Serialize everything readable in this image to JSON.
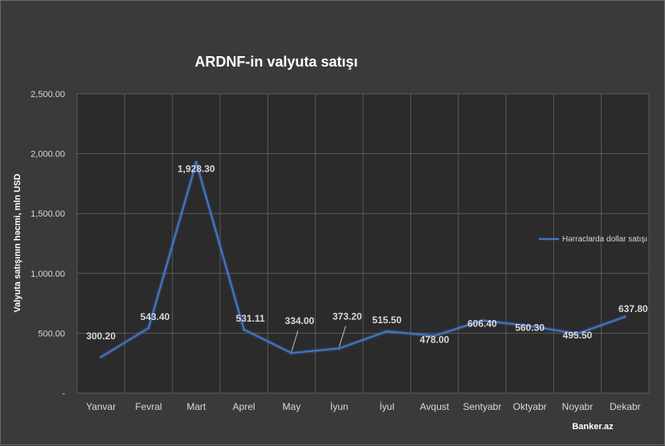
{
  "chart_data": {
    "type": "line",
    "title": "ARDNF-in valyuta satışı",
    "ylabel": "Valyuta satışının həcmi, mln USD",
    "xlabel": "",
    "categories": [
      "Yanvar",
      "Fevral",
      "Mart",
      "Aprel",
      "May",
      "İyun",
      "İyul",
      "Avqust",
      "Sentyabr",
      "Oktyabr",
      "Noyabr",
      "Dekabr"
    ],
    "series": [
      {
        "name": "Hərraclarda dollar satışı",
        "values": [
          300.2,
          543.4,
          1928.3,
          531.11,
          334.0,
          373.2,
          515.5,
          478.0,
          606.4,
          560.3,
          495.5,
          637.8
        ],
        "labels": [
          "300.20",
          "543.40",
          "1,928.30",
          "531.11",
          "334.00",
          "373.20",
          "515.50",
          "478.00",
          "606.40",
          "560.30",
          "495.50",
          "637.80"
        ],
        "color": "#4472c4"
      }
    ],
    "ylim": [
      0,
      2500
    ],
    "yticks": [
      0,
      500,
      1000,
      1500,
      2000,
      2500
    ],
    "ytick_labels": [
      "-",
      "500.00",
      "1,000.00",
      "1,500.00",
      "2,000.00",
      "2,500.00"
    ],
    "grid": true,
    "legend_position": "right"
  },
  "credit": "Banker.az",
  "colors": {
    "background": "#3a3a3a",
    "plot_background": "#2b2b2b",
    "grid": "#5a5a5a",
    "line": "#4472c4"
  }
}
